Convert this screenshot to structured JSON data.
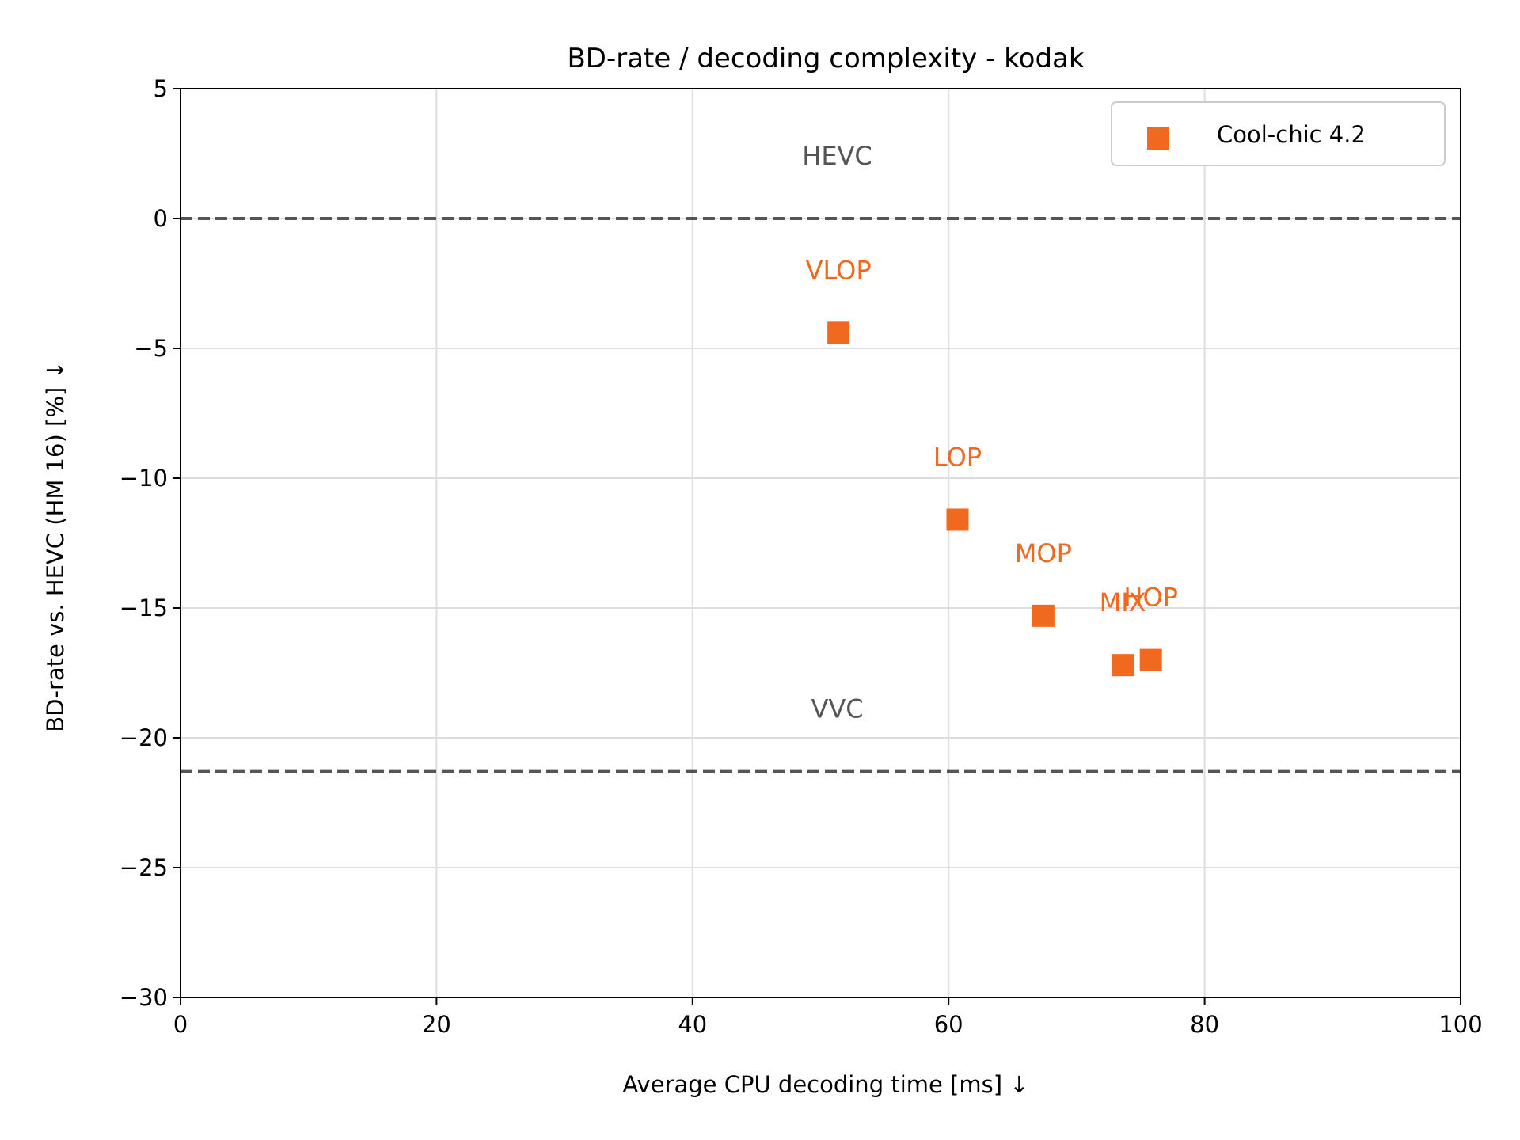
{
  "chart_data": {
    "type": "scatter",
    "title": "BD-rate / decoding complexity - kodak",
    "xlabel": "Average CPU decoding time [ms]  ↓",
    "ylabel": "BD-rate vs. HEVC (HM 16) [%]  ↓",
    "xlim": [
      0,
      100
    ],
    "ylim": [
      -30,
      5
    ],
    "x_ticks": [
      0,
      20,
      40,
      60,
      80,
      100
    ],
    "x_tick_labels": [
      "0",
      "20",
      "40",
      "60",
      "80",
      "100"
    ],
    "y_ticks": [
      5,
      0,
      -5,
      -10,
      -15,
      -20,
      -25,
      -30
    ],
    "y_tick_labels": [
      "5",
      "0",
      "−5",
      "−10",
      "−15",
      "−20",
      "−25",
      "−30"
    ],
    "grid": true,
    "legend_position": "top-right",
    "series": [
      {
        "name": "Cool-chic 4.2",
        "color": "#f0691e",
        "marker": "square",
        "points": [
          {
            "label": "VLOP",
            "x": 51.4,
            "y": -4.4
          },
          {
            "label": "LOP",
            "x": 60.7,
            "y": -11.6
          },
          {
            "label": "MOP",
            "x": 67.4,
            "y": -15.3
          },
          {
            "label": "MIX",
            "x": 73.6,
            "y": -17.2
          },
          {
            "label": "HOP",
            "x": 75.8,
            "y": -17.0
          }
        ]
      }
    ],
    "reference_lines": [
      {
        "label": "HEVC",
        "y": 0,
        "color": "#555555",
        "style": "dashed"
      },
      {
        "label": "VVC",
        "y": -21.3,
        "color": "#555555",
        "style": "dashed"
      }
    ]
  }
}
